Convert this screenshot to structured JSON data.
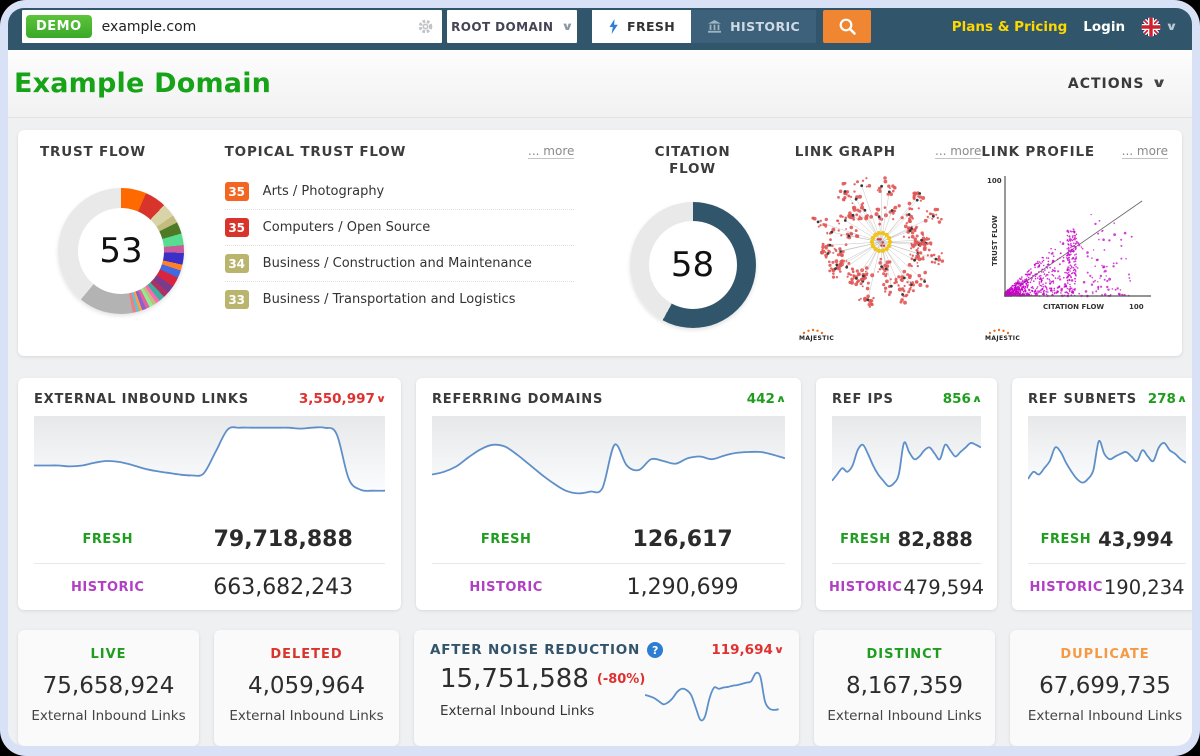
{
  "topbar": {
    "demo_badge": "DEMO",
    "search_value": "example.com",
    "root_domain_label": "ROOT DOMAIN",
    "fresh_label": "FRESH",
    "historic_label": "HISTORIC",
    "plans_pricing": "Plans & Pricing",
    "login": "Login",
    "chevron_down": "∨"
  },
  "header": {
    "title": "Example Domain",
    "actions_label": "ACTIONS",
    "chevron_down": "∨"
  },
  "colors": {
    "fresh_green": "#1f9d1f",
    "historic_purple": "#b13fc4",
    "trend_red": "#e03131",
    "trend_green": "#1f9d1f",
    "deleted_red": "#d8342c",
    "duplicate_orange": "#f59a44",
    "spark_line": "#5e8fc9"
  },
  "overview": {
    "trust_flow": {
      "title": "TRUST FLOW",
      "value": "53",
      "segments": [
        {
          "color": "#ff6a00",
          "pct": 6.5
        },
        {
          "color": "#d8342c",
          "pct": 5.5
        },
        {
          "color": "#d8d4a8",
          "pct": 3.5
        },
        {
          "color": "#c2bd7e",
          "pct": 2
        },
        {
          "color": "#4e7a28",
          "pct": 3
        },
        {
          "color": "#57dd90",
          "pct": 3
        },
        {
          "color": "#c75b9b",
          "pct": 2
        },
        {
          "color": "#3a30c8",
          "pct": 3
        },
        {
          "color": "#ff7f2a",
          "pct": 1.5
        },
        {
          "color": "#4169e1",
          "pct": 2
        },
        {
          "color": "#d8243c",
          "pct": 2.5
        },
        {
          "color": "#7a3b8f",
          "pct": 2
        },
        {
          "color": "#b03060",
          "pct": 1.5
        },
        {
          "color": "#3fae9e",
          "pct": 1.5
        },
        {
          "color": "#ff69b4",
          "pct": 1
        },
        {
          "color": "#c2bd7e",
          "pct": 1
        },
        {
          "color": "#90ee90",
          "pct": 1
        },
        {
          "color": "#e060a0",
          "pct": 1
        },
        {
          "color": "#8860d0",
          "pct": 1
        },
        {
          "color": "#ffa040",
          "pct": 0.8
        },
        {
          "color": "#60c0e0",
          "pct": 0.8
        },
        {
          "color": "#f08080",
          "pct": 0.9
        },
        {
          "color": "#b3b3b3",
          "pct": 14
        },
        {
          "color": "#e9e9e9",
          "pct": 38
        }
      ]
    },
    "topical_trust_flow": {
      "title": "TOPICAL TRUST FLOW",
      "more_label": "... more",
      "items": [
        {
          "score": "35",
          "color": "#f26522",
          "label": "Arts / Photography"
        },
        {
          "score": "35",
          "color": "#d8342c",
          "label": "Computers / Open Source"
        },
        {
          "score": "34",
          "color": "#b9b56e",
          "label": "Business / Construction and Maintenance"
        },
        {
          "score": "33",
          "color": "#b9b56e",
          "label": "Business / Transportation and Logistics"
        }
      ]
    },
    "citation_flow": {
      "title": "CITATION FLOW",
      "value": "58",
      "segments": [
        {
          "color": "#31566c",
          "pct": 58
        },
        {
          "color": "#e9e9e9",
          "pct": 42
        }
      ]
    },
    "link_graph": {
      "title": "LINK GRAPH",
      "more_label": "... more",
      "brand": "MAJESTIC"
    },
    "link_profile": {
      "title": "LINK PROFILE",
      "more_label": "... more",
      "brand": "MAJESTIC",
      "x_label": "CITATION FLOW",
      "y_label": "TRUST FLOW",
      "x_max": "100",
      "y_max": "100"
    }
  },
  "metric_cards": [
    {
      "title": "EXTERNAL INBOUND LINKS",
      "trend": {
        "value": "3,550,997",
        "glyph": "∨",
        "color": "#e03131"
      },
      "fresh_label": "FRESH",
      "fresh_value": "79,718,888",
      "historic_label": "HISTORIC",
      "historic_value": "663,682,243",
      "spark": [
        45,
        45,
        45,
        44,
        45,
        48,
        50,
        49,
        46,
        42,
        39,
        37,
        35,
        34,
        36,
        60,
        85,
        87,
        87,
        87,
        87,
        87,
        86,
        87,
        87,
        80,
        30,
        18,
        17,
        17
      ]
    },
    {
      "title": "REFERRING DOMAINS",
      "trend": {
        "value": "442",
        "glyph": "∧",
        "color": "#1f9d1f"
      },
      "fresh_label": "FRESH",
      "fresh_value": "126,617",
      "historic_label": "HISTORIC",
      "historic_value": "1,290,699",
      "spark": [
        35,
        38,
        44,
        54,
        63,
        68,
        66,
        57,
        46,
        35,
        25,
        17,
        14,
        16,
        20,
        68,
        45,
        40,
        52,
        50,
        47,
        53,
        55,
        52,
        56,
        59,
        60,
        60,
        57,
        53
      ]
    },
    {
      "title": "REF IPS",
      "trend": {
        "value": "856",
        "glyph": "∧",
        "color": "#1f9d1f"
      },
      "fresh_label": "FRESH",
      "fresh_value": "82,888",
      "historic_label": "HISTORIC",
      "historic_value": "479,594",
      "spark": [
        28,
        35,
        42,
        38,
        45,
        62,
        68,
        58,
        45,
        35,
        28,
        22,
        25,
        35,
        70,
        60,
        52,
        55,
        62,
        65,
        58,
        52,
        68,
        62,
        55,
        60,
        65,
        70,
        68,
        65
      ]
    },
    {
      "title": "REF SUBNETS",
      "trend": {
        "value": "278",
        "glyph": "∧",
        "color": "#1f9d1f"
      },
      "fresh_label": "FRESH",
      "fresh_value": "43,994",
      "historic_label": "HISTORIC",
      "historic_value": "190,234",
      "spark": [
        30,
        38,
        35,
        42,
        50,
        65,
        60,
        48,
        38,
        30,
        26,
        30,
        40,
        72,
        58,
        52,
        55,
        58,
        60,
        55,
        50,
        62,
        55,
        50,
        65,
        70,
        62,
        58,
        52,
        48
      ]
    }
  ],
  "summary_cards": [
    {
      "label": "LIVE",
      "color": "#1f9d1f",
      "value": "75,658,924",
      "caption": "External Inbound Links"
    },
    {
      "label": "DELETED",
      "color": "#d8342c",
      "value": "4,059,964",
      "caption": "External Inbound Links"
    },
    {
      "label": "DISTINCT",
      "color": "#1f9d1f",
      "value": "8,167,359",
      "caption": "External Inbound Links"
    },
    {
      "label": "DUPLICATE",
      "color": "#f59a44",
      "value": "67,699,735",
      "caption": "External Inbound Links"
    }
  ],
  "noise_card": {
    "title": "AFTER NOISE REDUCTION",
    "help": "?",
    "trend": {
      "value": "119,694",
      "glyph": "∨",
      "color": "#e03131"
    },
    "value": "15,751,588",
    "delta": "(-80%)",
    "caption": "External Inbound Links",
    "spark": [
      50,
      48,
      45,
      40,
      35,
      38,
      45,
      55,
      60,
      58,
      50,
      30,
      10,
      15,
      45,
      62,
      60,
      62,
      63,
      65,
      66,
      68,
      70,
      72,
      85,
      80,
      40,
      28,
      26,
      27
    ]
  }
}
